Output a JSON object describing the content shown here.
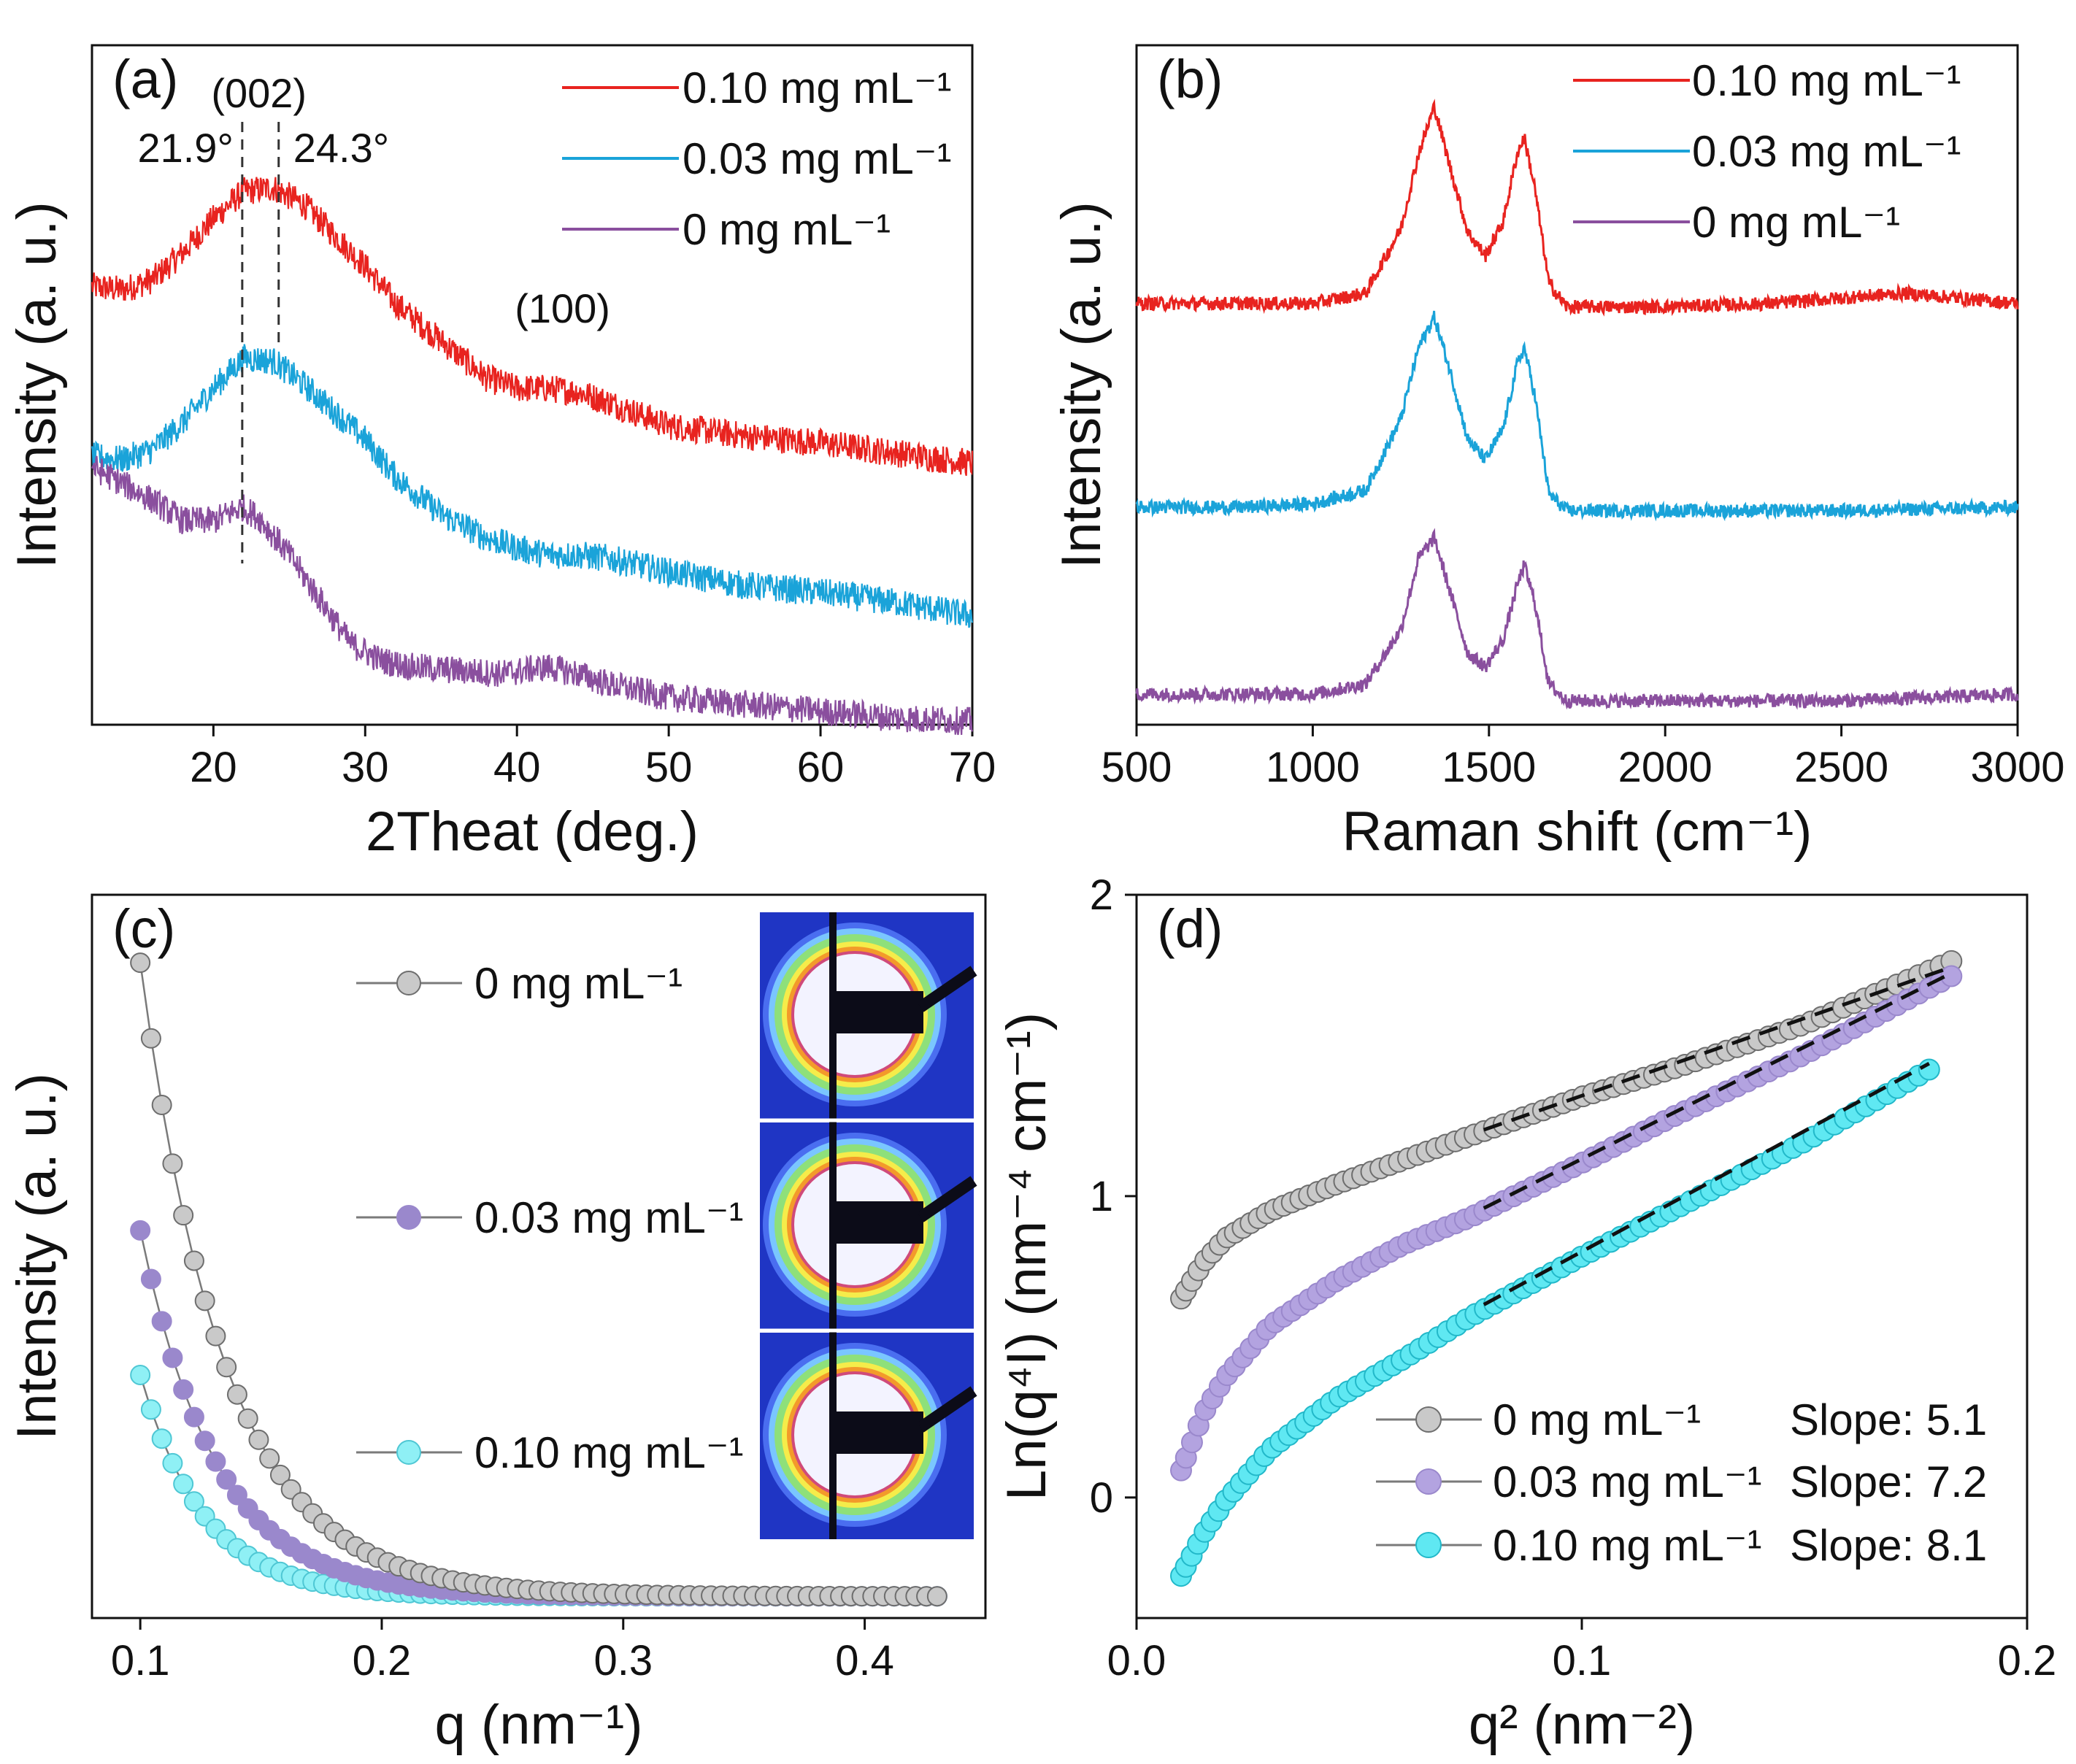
{
  "chart_data": [
    {
      "type": "line",
      "panel_label": "(a)",
      "xlabel": "2Theat (deg.)",
      "ylabel": "Intensity (a. u.)",
      "xlim": [
        12,
        70
      ],
      "ylim": [
        0,
        10
      ],
      "x_ticks": [
        20,
        30,
        40,
        50,
        60,
        70
      ],
      "show_y_ticks": false,
      "legend": [
        "0.10 mg mL⁻¹",
        "0.03 mg mL⁻¹",
        "0 mg mL⁻¹"
      ],
      "legend_position": "top-right",
      "annotations": {
        "peak_002": "(002)",
        "peak_100": "(100)",
        "left_line_label": "21.9°",
        "right_line_label": "24.3°"
      },
      "reference_lines": [
        21.9,
        24.3
      ],
      "series": [
        {
          "name": "0.10 mg mL⁻¹",
          "color": "#e8231f",
          "points": [
            [
              12,
              6.45
            ],
            [
              14,
              6.4
            ],
            [
              16,
              6.55
            ],
            [
              18,
              6.95
            ],
            [
              20,
              7.45
            ],
            [
              22,
              7.85
            ],
            [
              24,
              7.9
            ],
            [
              26,
              7.65
            ],
            [
              28,
              7.2
            ],
            [
              30,
              6.75
            ],
            [
              32,
              6.2
            ],
            [
              35,
              5.65
            ],
            [
              38,
              5.1
            ],
            [
              40,
              4.95
            ],
            [
              42,
              4.95
            ],
            [
              44,
              4.9
            ],
            [
              46,
              4.75
            ],
            [
              50,
              4.4
            ],
            [
              55,
              4.25
            ],
            [
              60,
              4.15
            ],
            [
              65,
              4.0
            ],
            [
              70,
              3.85
            ]
          ]
        },
        {
          "name": "0.03 mg mL⁻¹",
          "color": "#1aa3d9",
          "points": [
            [
              12,
              3.95
            ],
            [
              14,
              3.9
            ],
            [
              16,
              4.05
            ],
            [
              18,
              4.45
            ],
            [
              20,
              4.95
            ],
            [
              22,
              5.4
            ],
            [
              24,
              5.35
            ],
            [
              26,
              5.0
            ],
            [
              28,
              4.6
            ],
            [
              30,
              4.2
            ],
            [
              32,
              3.65
            ],
            [
              35,
              3.1
            ],
            [
              38,
              2.75
            ],
            [
              40,
              2.6
            ],
            [
              42,
              2.5
            ],
            [
              44,
              2.5
            ],
            [
              46,
              2.45
            ],
            [
              50,
              2.25
            ],
            [
              55,
              2.05
            ],
            [
              60,
              1.95
            ],
            [
              65,
              1.8
            ],
            [
              70,
              1.6
            ]
          ]
        },
        {
          "name": "0 mg mL⁻¹",
          "color": "#8a4f9e",
          "points": [
            [
              12,
              3.8
            ],
            [
              14,
              3.55
            ],
            [
              16,
              3.3
            ],
            [
              18,
              3.0
            ],
            [
              20,
              3.0
            ],
            [
              21.9,
              3.2
            ],
            [
              23,
              3.05
            ],
            [
              25,
              2.5
            ],
            [
              27,
              1.85
            ],
            [
              29,
              1.2
            ],
            [
              31,
              0.95
            ],
            [
              33,
              0.85
            ],
            [
              36,
              0.8
            ],
            [
              39,
              0.75
            ],
            [
              42,
              0.85
            ],
            [
              44,
              0.75
            ],
            [
              46,
              0.6
            ],
            [
              50,
              0.4
            ],
            [
              55,
              0.3
            ],
            [
              60,
              0.2
            ],
            [
              65,
              0.1
            ],
            [
              70,
              0.05
            ]
          ]
        }
      ]
    },
    {
      "type": "line",
      "panel_label": "(b)",
      "xlabel": "Raman shift (cm⁻¹)",
      "ylabel": "Intensity (a. u.)",
      "xlim": [
        500,
        3000
      ],
      "ylim": [
        0,
        10
      ],
      "x_ticks": [
        500,
        1000,
        1500,
        2000,
        2500,
        3000
      ],
      "show_y_ticks": false,
      "legend": [
        "0.10 mg mL⁻¹",
        "0.03 mg mL⁻¹",
        "0 mg mL⁻¹"
      ],
      "legend_position": "top-center",
      "series": [
        {
          "name": "0.10 mg mL⁻¹",
          "color": "#e8231f",
          "points": [
            [
              500,
              6.2
            ],
            [
              800,
              6.2
            ],
            [
              1000,
              6.2
            ],
            [
              1150,
              6.35
            ],
            [
              1250,
              7.3
            ],
            [
              1300,
              8.4
            ],
            [
              1345,
              9.1
            ],
            [
              1390,
              8.2
            ],
            [
              1440,
              7.25
            ],
            [
              1490,
              6.9
            ],
            [
              1540,
              7.4
            ],
            [
              1580,
              8.4
            ],
            [
              1600,
              8.65
            ],
            [
              1630,
              7.9
            ],
            [
              1670,
              6.5
            ],
            [
              1720,
              6.15
            ],
            [
              2000,
              6.15
            ],
            [
              2300,
              6.2
            ],
            [
              2680,
              6.35
            ],
            [
              3000,
              6.2
            ]
          ]
        },
        {
          "name": "0.03 mg mL⁻¹",
          "color": "#1aa3d9",
          "points": [
            [
              500,
              3.2
            ],
            [
              800,
              3.2
            ],
            [
              1000,
              3.25
            ],
            [
              1150,
              3.45
            ],
            [
              1250,
              4.5
            ],
            [
              1300,
              5.55
            ],
            [
              1345,
              6.0
            ],
            [
              1390,
              5.2
            ],
            [
              1440,
              4.2
            ],
            [
              1490,
              3.9
            ],
            [
              1540,
              4.35
            ],
            [
              1580,
              5.3
            ],
            [
              1600,
              5.55
            ],
            [
              1630,
              4.85
            ],
            [
              1670,
              3.4
            ],
            [
              1720,
              3.15
            ],
            [
              2000,
              3.15
            ],
            [
              2500,
              3.15
            ],
            [
              3000,
              3.2
            ]
          ]
        },
        {
          "name": "0 mg mL⁻¹",
          "color": "#8a4f9e",
          "points": [
            [
              500,
              0.45
            ],
            [
              800,
              0.45
            ],
            [
              1000,
              0.45
            ],
            [
              1150,
              0.6
            ],
            [
              1250,
              1.4
            ],
            [
              1300,
              2.45
            ],
            [
              1345,
              2.75
            ],
            [
              1390,
              1.95
            ],
            [
              1440,
              1.05
            ],
            [
              1490,
              0.85
            ],
            [
              1540,
              1.25
            ],
            [
              1580,
              2.05
            ],
            [
              1600,
              2.35
            ],
            [
              1630,
              1.8
            ],
            [
              1670,
              0.6
            ],
            [
              1720,
              0.35
            ],
            [
              2000,
              0.35
            ],
            [
              2500,
              0.35
            ],
            [
              3000,
              0.45
            ]
          ]
        }
      ]
    },
    {
      "type": "scatter",
      "panel_label": "(c)",
      "xlabel": "q (nm⁻¹)",
      "ylabel": "Intensity (a. u.)",
      "xlim": [
        0.08,
        0.45
      ],
      "ylim": [
        0,
        10
      ],
      "x_ticks": [
        0.1,
        0.2,
        0.3,
        0.4
      ],
      "show_y_ticks": false,
      "legend": [
        "0 mg mL⁻¹",
        "0.03 mg mL⁻¹",
        "0.10 mg mL⁻¹"
      ],
      "legend_position": "left-center, stacked vertically",
      "inset": "three 2D SAXS scattering patterns (colored rings) stacked vertically, top-right",
      "series": [
        {
          "name": "0 mg mL⁻¹",
          "color": "#c9c9c9",
          "edge": "#6e6e6e",
          "A": 8.76,
          "k": 28.5
        },
        {
          "name": "0.03 mg mL⁻¹",
          "color": "#9a88cc",
          "edge": "#9a88cc",
          "A": 5.06,
          "k": 32.0
        },
        {
          "name": "0.10 mg mL⁻¹",
          "color": "#8ff0f5",
          "edge": "#4fc7d4",
          "A": 3.06,
          "k": 38.0
        }
      ],
      "x_start": 0.1,
      "x_end": 0.43,
      "points_per_series": 75,
      "baseline": 0.3
    },
    {
      "type": "scatter",
      "panel_label": "(d)",
      "xlabel": "q² (nm⁻²)",
      "ylabel": "Ln(q⁴I) (nm⁻⁴ cm⁻¹)",
      "xlim": [
        0.0,
        0.2
      ],
      "ylim": [
        -0.4,
        2.0
      ],
      "x_ticks": [
        0.0,
        0.1,
        0.2
      ],
      "x_tick_labels": [
        "0.0",
        "0.1",
        "0.2"
      ],
      "y_ticks": [
        0,
        1,
        2
      ],
      "legend": [
        "0 mg mL⁻¹",
        "0.03 mg mL⁻¹",
        "0.10 mg mL⁻¹"
      ],
      "legend_position": "bottom-right",
      "slope_labels": [
        "Slope: 5.1",
        "Slope: 7.2",
        "Slope: 8.1"
      ],
      "series": [
        {
          "name": "0 mg mL⁻¹",
          "color": "#c9c9c9",
          "edge": "#6e6e6e",
          "curve": [
            [
              0.01,
              0.66
            ],
            [
              0.015,
              0.78
            ],
            [
              0.02,
              0.86
            ],
            [
              0.03,
              0.95
            ],
            [
              0.045,
              1.04
            ],
            [
              0.06,
              1.12
            ],
            [
              0.075,
              1.2
            ],
            [
              0.1,
              1.33
            ],
            [
              0.12,
              1.42
            ],
            [
              0.15,
              1.57
            ],
            [
              0.183,
              1.78
            ]
          ],
          "fit": [
            [
              0.078,
              1.22
            ],
            [
              0.183,
              1.76
            ]
          ]
        },
        {
          "name": "0.03 mg mL⁻¹",
          "color": "#b3a3e0",
          "edge": "#9a88cc",
          "curve": [
            [
              0.01,
              0.09
            ],
            [
              0.015,
              0.28
            ],
            [
              0.02,
              0.4
            ],
            [
              0.03,
              0.57
            ],
            [
              0.045,
              0.72
            ],
            [
              0.06,
              0.84
            ],
            [
              0.075,
              0.93
            ],
            [
              0.1,
              1.11
            ],
            [
              0.12,
              1.26
            ],
            [
              0.15,
              1.47
            ],
            [
              0.183,
              1.73
            ]
          ],
          "fit": [
            [
              0.078,
              0.96
            ],
            [
              0.183,
              1.74
            ]
          ]
        },
        {
          "name": "0.10 mg mL⁻¹",
          "color": "#5fe8f2",
          "edge": "#22b8c9",
          "curve": [
            [
              0.01,
              -0.26
            ],
            [
              0.015,
              -0.12
            ],
            [
              0.02,
              -0.01
            ],
            [
              0.03,
              0.16
            ],
            [
              0.045,
              0.33
            ],
            [
              0.06,
              0.46
            ],
            [
              0.075,
              0.6
            ],
            [
              0.1,
              0.8
            ],
            [
              0.12,
              0.95
            ],
            [
              0.15,
              1.18
            ],
            [
              0.178,
              1.42
            ]
          ],
          "fit": [
            [
              0.078,
              0.64
            ],
            [
              0.178,
              1.44
            ]
          ]
        }
      ]
    }
  ]
}
